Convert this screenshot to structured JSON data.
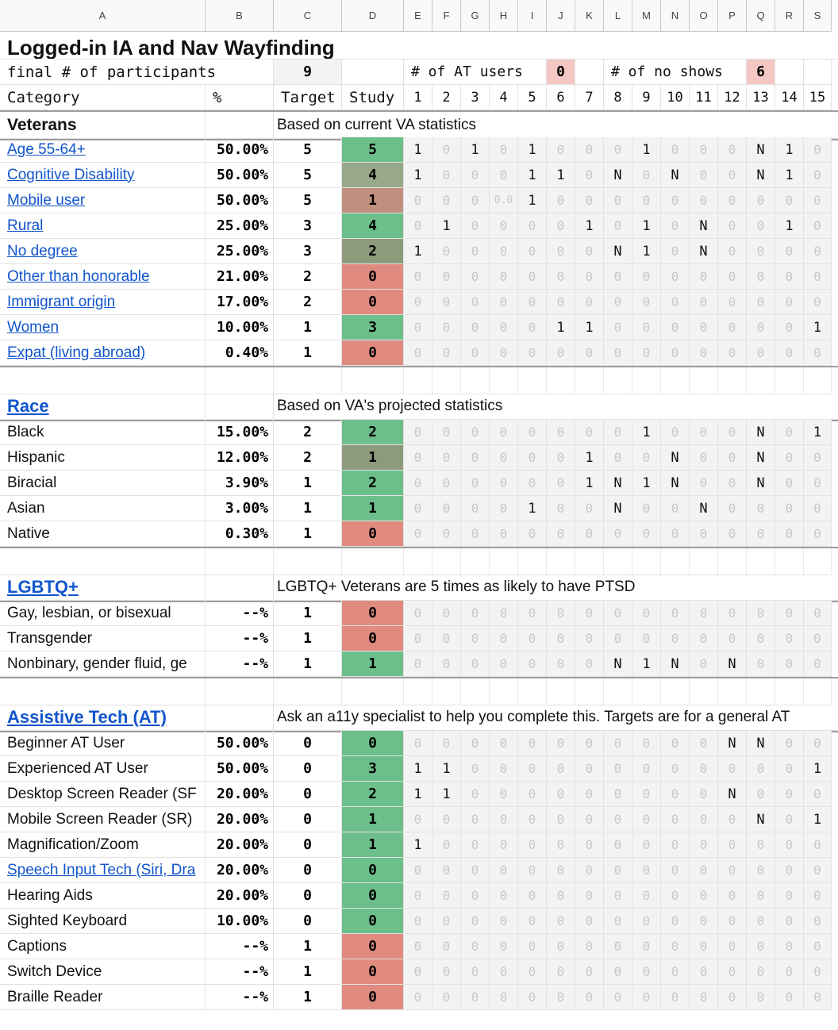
{
  "columns": [
    "A",
    "B",
    "C",
    "D",
    "E",
    "F",
    "G",
    "H",
    "I",
    "J",
    "K",
    "L",
    "M",
    "N",
    "O",
    "P",
    "Q",
    "R",
    "S"
  ],
  "title": "Logged-in IA and Nav Wayfinding",
  "summary": {
    "participants_label": "final # of participants",
    "participants_value": "9",
    "at_users_label": "# of AT users",
    "at_users_value": "0",
    "no_shows_label": "# of no shows",
    "no_shows_value": "6"
  },
  "header": {
    "category": "Category",
    "percent": "%",
    "target": "Target",
    "study": "Study",
    "participants": [
      "1",
      "2",
      "3",
      "4",
      "5",
      "6",
      "7",
      "8",
      "9",
      "10",
      "11",
      "12",
      "13",
      "14",
      "15"
    ]
  },
  "colors": {
    "green": "#6cbf8a",
    "red": "#e08a80",
    "sage": "#98a88a",
    "olive": "#8d9b7c",
    "rose": "#c08f7e",
    "link": "#1155cc",
    "pink_cell": "#f4c7c3"
  },
  "sections": [
    {
      "title": "Veterans",
      "is_link": false,
      "note": "Based on current VA statistics",
      "rows": [
        {
          "label": "Age 55-64+",
          "link": true,
          "pct": "50.00%",
          "target": "5",
          "study": "5",
          "color": "green",
          "cells": [
            "1",
            "0",
            "1",
            "0",
            "1",
            "0",
            "0",
            "0",
            "1",
            "0",
            "0",
            "0",
            "N",
            "1",
            "0"
          ]
        },
        {
          "label": "Cognitive Disability",
          "link": true,
          "pct": "50.00%",
          "target": "5",
          "study": "4",
          "color": "sage",
          "cells": [
            "1",
            "0",
            "0",
            "0",
            "1",
            "1",
            "0",
            "N",
            "0",
            "N",
            "0",
            "0",
            "N",
            "1",
            "0"
          ]
        },
        {
          "label": "Mobile user",
          "link": true,
          "pct": "50.00%",
          "target": "5",
          "study": "1",
          "color": "rose",
          "cells": [
            "0",
            "0",
            "0",
            "0.0",
            "1",
            "0",
            "0",
            "0",
            "0",
            "0",
            "0",
            "0",
            "0",
            "0",
            "0"
          ]
        },
        {
          "label": "Rural",
          "link": true,
          "pct": "25.00%",
          "target": "3",
          "study": "4",
          "color": "green",
          "cells": [
            "0",
            "1",
            "0",
            "0",
            "0",
            "0",
            "1",
            "0",
            "1",
            "0",
            "N",
            "0",
            "0",
            "1",
            "0"
          ]
        },
        {
          "label": "No degree",
          "link": true,
          "pct": "25.00%",
          "target": "3",
          "study": "2",
          "color": "olive",
          "cells": [
            "1",
            "0",
            "0",
            "0",
            "0",
            "0",
            "0",
            "N",
            "1",
            "0",
            "N",
            "0",
            "0",
            "0",
            "0"
          ]
        },
        {
          "label": "Other than honorable",
          "link": true,
          "pct": "21.00%",
          "target": "2",
          "study": "0",
          "color": "red",
          "cells": [
            "0",
            "0",
            "0",
            "0",
            "0",
            "0",
            "0",
            "0",
            "0",
            "0",
            "0",
            "0",
            "0",
            "0",
            "0"
          ]
        },
        {
          "label": "Immigrant origin",
          "link": true,
          "pct": "17.00%",
          "target": "2",
          "study": "0",
          "color": "red",
          "cells": [
            "0",
            "0",
            "0",
            "0",
            "0",
            "0",
            "0",
            "0",
            "0",
            "0",
            "0",
            "0",
            "0",
            "0",
            "0"
          ]
        },
        {
          "label": "Women",
          "link": true,
          "pct": "10.00%",
          "target": "1",
          "study": "3",
          "color": "green",
          "cells": [
            "0",
            "0",
            "0",
            "0",
            "0",
            "1",
            "1",
            "0",
            "0",
            "0",
            "0",
            "0",
            "0",
            "0",
            "1"
          ]
        },
        {
          "label": "Expat (living abroad)",
          "link": true,
          "pct": "0.40%",
          "target": "1",
          "study": "0",
          "color": "red",
          "cells": [
            "0",
            "0",
            "0",
            "0",
            "0",
            "0",
            "0",
            "0",
            "0",
            "0",
            "0",
            "0",
            "0",
            "0",
            "0"
          ]
        }
      ]
    },
    {
      "title": "Race",
      "is_link": true,
      "note": "Based on VA's projected statistics",
      "rows": [
        {
          "label": "Black",
          "link": false,
          "pct": "15.00%",
          "target": "2",
          "study": "2",
          "color": "green",
          "cells": [
            "0",
            "0",
            "0",
            "0",
            "0",
            "0",
            "0",
            "0",
            "1",
            "0",
            "0",
            "0",
            "N",
            "0",
            "1"
          ]
        },
        {
          "label": "Hispanic",
          "link": false,
          "pct": "12.00%",
          "target": "2",
          "study": "1",
          "color": "olive",
          "cells": [
            "0",
            "0",
            "0",
            "0",
            "0",
            "0",
            "1",
            "0",
            "0",
            "N",
            "0",
            "0",
            "N",
            "0",
            "0"
          ]
        },
        {
          "label": "Biracial",
          "link": false,
          "pct": "3.90%",
          "target": "1",
          "study": "2",
          "color": "green",
          "cells": [
            "0",
            "0",
            "0",
            "0",
            "0",
            "0",
            "1",
            "N",
            "1",
            "N",
            "0",
            "0",
            "N",
            "0",
            "0"
          ]
        },
        {
          "label": "Asian",
          "link": false,
          "pct": "3.00%",
          "target": "1",
          "study": "1",
          "color": "green",
          "cells": [
            "0",
            "0",
            "0",
            "0",
            "1",
            "0",
            "0",
            "N",
            "0",
            "0",
            "N",
            "0",
            "0",
            "0",
            "0"
          ]
        },
        {
          "label": "Native",
          "link": false,
          "pct": "0.30%",
          "target": "1",
          "study": "0",
          "color": "red",
          "cells": [
            "0",
            "0",
            "0",
            "0",
            "0",
            "0",
            "0",
            "0",
            "0",
            "0",
            "0",
            "0",
            "0",
            "0",
            "0"
          ]
        }
      ]
    },
    {
      "title": "LGBTQ+",
      "is_link": true,
      "note": "LGBTQ+ Veterans are 5 times as likely to have PTSD",
      "rows": [
        {
          "label": "Gay, lesbian, or bisexual",
          "link": false,
          "pct": "--%",
          "target": "1",
          "study": "0",
          "color": "red",
          "cells": [
            "0",
            "0",
            "0",
            "0",
            "0",
            "0",
            "0",
            "0",
            "0",
            "0",
            "0",
            "0",
            "0",
            "0",
            "0"
          ]
        },
        {
          "label": "Transgender",
          "link": false,
          "pct": "--%",
          "target": "1",
          "study": "0",
          "color": "red",
          "cells": [
            "0",
            "0",
            "0",
            "0",
            "0",
            "0",
            "0",
            "0",
            "0",
            "0",
            "0",
            "0",
            "0",
            "0",
            "0"
          ]
        },
        {
          "label": "Nonbinary, gender fluid, ge",
          "link": false,
          "pct": "--%",
          "target": "1",
          "study": "1",
          "color": "green",
          "cells": [
            "0",
            "0",
            "0",
            "0",
            "0",
            "0",
            "0",
            "N",
            "1",
            "N",
            "0",
            "N",
            "0",
            "0",
            "0"
          ]
        }
      ]
    },
    {
      "title": "Assistive Tech (AT)",
      "is_link": true,
      "note": "Ask an a11y specialist to help you complete this. Targets are for a general AT",
      "rows": [
        {
          "label": "Beginner AT User",
          "link": false,
          "pct": "50.00%",
          "target": "0",
          "study": "0",
          "color": "green",
          "cells": [
            "0",
            "0",
            "0",
            "0",
            "0",
            "0",
            "0",
            "0",
            "0",
            "0",
            "0",
            "N",
            "N",
            "0",
            "0"
          ]
        },
        {
          "label": "Experienced AT User",
          "link": false,
          "pct": "50.00%",
          "target": "0",
          "study": "3",
          "color": "green",
          "cells": [
            "1",
            "1",
            "0",
            "0",
            "0",
            "0",
            "0",
            "0",
            "0",
            "0",
            "0",
            "0",
            "0",
            "0",
            "1"
          ]
        },
        {
          "label": "Desktop Screen Reader (SF",
          "link": false,
          "pct": "20.00%",
          "target": "0",
          "study": "2",
          "color": "green",
          "cells": [
            "1",
            "1",
            "0",
            "0",
            "0",
            "0",
            "0",
            "0",
            "0",
            "0",
            "0",
            "N",
            "0",
            "0",
            "0"
          ]
        },
        {
          "label": "Mobile Screen Reader (SR)",
          "link": false,
          "pct": "20.00%",
          "target": "0",
          "study": "1",
          "color": "green",
          "cells": [
            "0",
            "0",
            "0",
            "0",
            "0",
            "0",
            "0",
            "0",
            "0",
            "0",
            "0",
            "0",
            "N",
            "0",
            "1"
          ]
        },
        {
          "label": "Magnification/Zoom",
          "link": false,
          "pct": "20.00%",
          "target": "0",
          "study": "1",
          "color": "green",
          "cells": [
            "1",
            "0",
            "0",
            "0",
            "0",
            "0",
            "0",
            "0",
            "0",
            "0",
            "0",
            "0",
            "0",
            "0",
            "0"
          ]
        },
        {
          "label": "Speech Input Tech (Siri, Dra",
          "link": true,
          "pct": "20.00%",
          "target": "0",
          "study": "0",
          "color": "green",
          "cells": [
            "0",
            "0",
            "0",
            "0",
            "0",
            "0",
            "0",
            "0",
            "0",
            "0",
            "0",
            "0",
            "0",
            "0",
            "0"
          ]
        },
        {
          "label": "Hearing Aids",
          "link": false,
          "pct": "20.00%",
          "target": "0",
          "study": "0",
          "color": "green",
          "cells": [
            "0",
            "0",
            "0",
            "0",
            "0",
            "0",
            "0",
            "0",
            "0",
            "0",
            "0",
            "0",
            "0",
            "0",
            "0"
          ]
        },
        {
          "label": "Sighted Keyboard",
          "link": false,
          "pct": "10.00%",
          "target": "0",
          "study": "0",
          "color": "green",
          "cells": [
            "0",
            "0",
            "0",
            "0",
            "0",
            "0",
            "0",
            "0",
            "0",
            "0",
            "0",
            "0",
            "0",
            "0",
            "0"
          ]
        },
        {
          "label": "Captions",
          "link": false,
          "pct": "--%",
          "target": "1",
          "study": "0",
          "color": "red",
          "cells": [
            "0",
            "0",
            "0",
            "0",
            "0",
            "0",
            "0",
            "0",
            "0",
            "0",
            "0",
            "0",
            "0",
            "0",
            "0"
          ]
        },
        {
          "label": "Switch Device",
          "link": false,
          "pct": "--%",
          "target": "1",
          "study": "0",
          "color": "red",
          "cells": [
            "0",
            "0",
            "0",
            "0",
            "0",
            "0",
            "0",
            "0",
            "0",
            "0",
            "0",
            "0",
            "0",
            "0",
            "0"
          ]
        },
        {
          "label": "Braille Reader",
          "link": false,
          "pct": "--%",
          "target": "1",
          "study": "0",
          "color": "red",
          "cells": [
            "0",
            "0",
            "0",
            "0",
            "0",
            "0",
            "0",
            "0",
            "0",
            "0",
            "0",
            "0",
            "0",
            "0",
            "0"
          ]
        }
      ]
    }
  ]
}
